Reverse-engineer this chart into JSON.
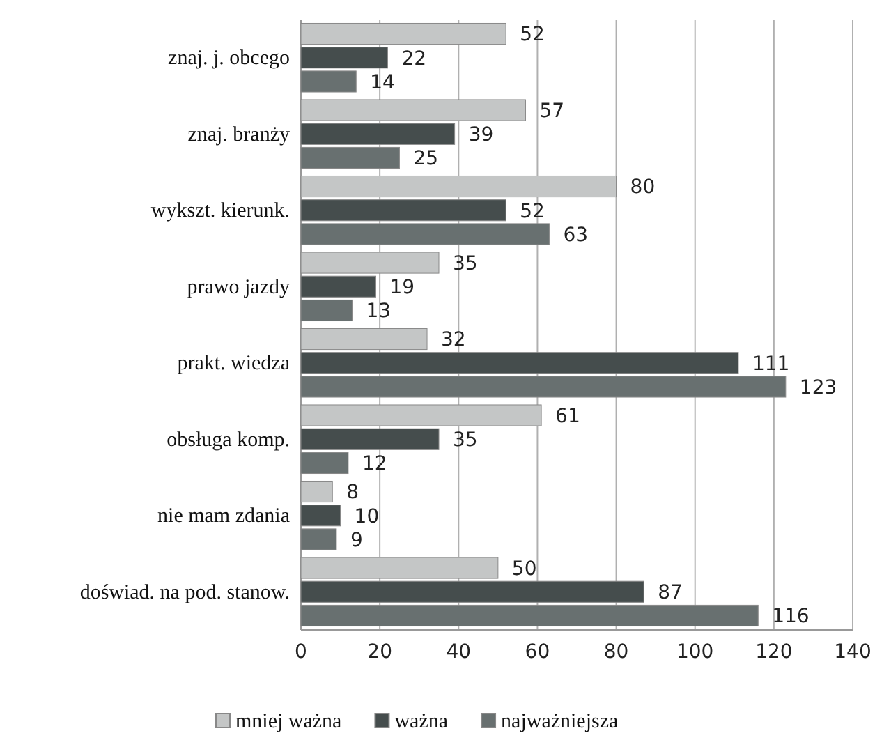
{
  "chart_data": {
    "type": "bar",
    "orientation": "horizontal",
    "categories": [
      "znaj. j. obcego",
      "znaj. branży",
      "wykszt. kierunk.",
      "prawo jazdy",
      "prakt. wiedza",
      "obsługa komp.",
      "nie mam zdania",
      "doświad. na pod. stanow."
    ],
    "series": [
      {
        "name": "mniej ważna",
        "color": "#c4c6c6",
        "values": [
          52,
          57,
          80,
          35,
          32,
          61,
          8,
          50
        ]
      },
      {
        "name": "ważna",
        "color": "#454d4d",
        "values": [
          22,
          39,
          52,
          19,
          111,
          35,
          10,
          87
        ]
      },
      {
        "name": "najważniejsza",
        "color": "#687070",
        "values": [
          14,
          25,
          63,
          13,
          123,
          12,
          9,
          116
        ]
      }
    ],
    "xlim": [
      0,
      140
    ],
    "xticks": [
      0,
      20,
      40,
      60,
      80,
      100,
      120,
      140
    ],
    "grid": "x",
    "legend": "bottom",
    "data_labels": true
  }
}
